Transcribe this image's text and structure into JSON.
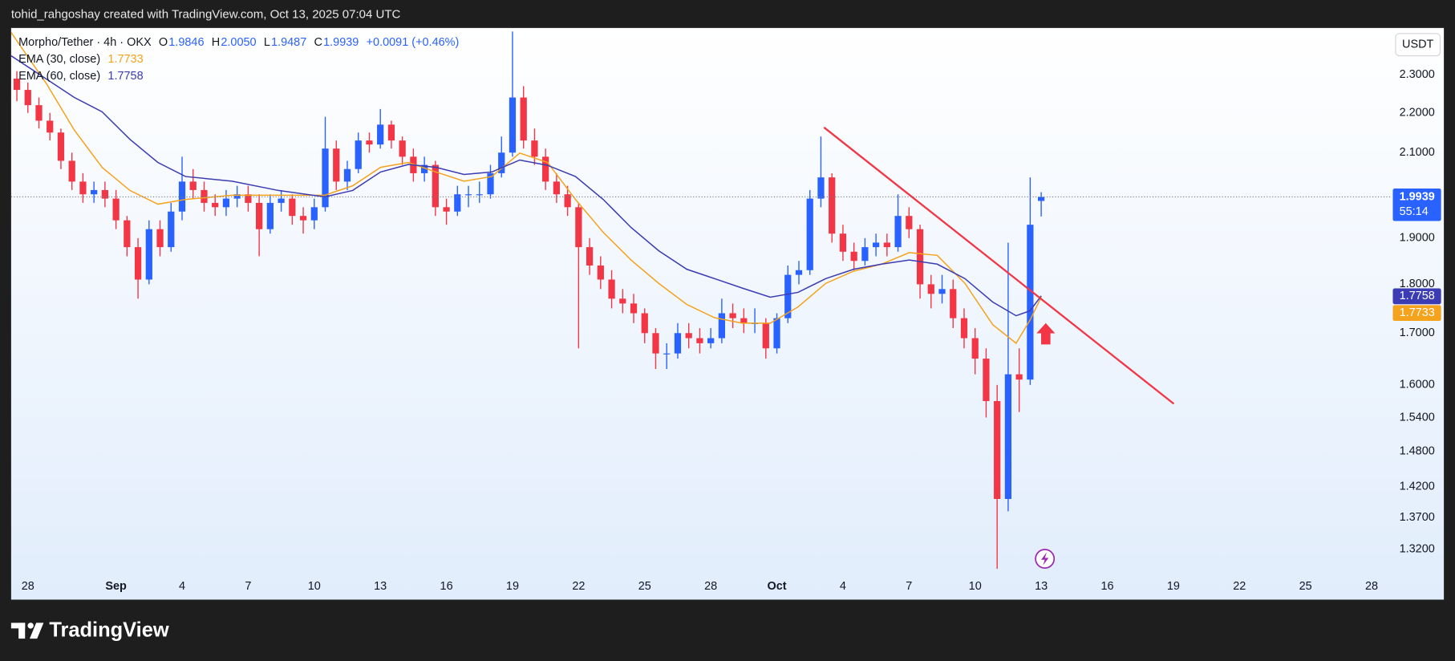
{
  "header": {
    "text": "tohid_rahgoshay created with TradingView.com, Oct 13, 2025 07:04 UTC"
  },
  "footer": {
    "brand": "TradingView"
  },
  "chart_data": {
    "type": "candlestick",
    "symbol": "Morpho/Tether · 4h · OKX",
    "ohlc_legend": [
      {
        "label": "O",
        "value": "1.9846"
      },
      {
        "label": "H",
        "value": "2.0050"
      },
      {
        "label": "L",
        "value": "1.9487"
      },
      {
        "label": "C",
        "value": "1.9939"
      }
    ],
    "change": "+0.0091 (+0.46%)",
    "currency": "USDT",
    "last_price": 1.9939,
    "countdown": "55:14",
    "up_color": "#2962ff",
    "down_color": "#f23645",
    "x": [
      -0.5,
      0,
      0.5,
      1,
      1.5,
      2,
      2.5,
      3,
      3.5,
      4,
      4.5,
      5,
      5.5,
      6,
      6.5,
      7,
      7.5,
      8,
      8.5,
      9,
      9.5,
      10,
      10.5,
      11,
      11.5,
      12,
      12.5,
      13,
      13.5,
      14,
      14.5,
      15,
      15.5,
      16,
      16.5,
      17,
      17.5,
      18,
      18.5,
      19,
      19.5,
      20,
      20.5,
      21,
      21.5,
      22,
      22.5,
      23,
      23.5,
      24,
      24.5,
      25,
      25.5,
      26,
      26.5,
      27,
      27.5,
      28,
      28.5,
      29,
      29.5,
      30,
      30.5,
      31,
      31.5,
      32,
      32.5,
      33,
      33.5,
      34,
      34.5,
      35,
      35.5,
      36,
      36.5,
      37,
      37.5,
      38,
      38.5,
      39,
      39.5,
      40,
      40.5,
      41,
      41.5,
      42,
      42.5,
      43,
      43.5,
      44,
      44.5,
      45,
      45.5,
      46
    ],
    "ohlc": [
      [
        2.29,
        2.31,
        2.23,
        2.26
      ],
      [
        2.26,
        2.28,
        2.2,
        2.22
      ],
      [
        2.22,
        2.24,
        2.16,
        2.18
      ],
      [
        2.18,
        2.2,
        2.13,
        2.15
      ],
      [
        2.15,
        2.16,
        2.06,
        2.08
      ],
      [
        2.08,
        2.1,
        2.01,
        2.03
      ],
      [
        2.03,
        2.05,
        1.98,
        2.0
      ],
      [
        2.0,
        2.03,
        1.98,
        2.01
      ],
      [
        2.01,
        2.03,
        1.97,
        1.99
      ],
      [
        1.99,
        2.01,
        1.92,
        1.94
      ],
      [
        1.94,
        1.95,
        1.86,
        1.88
      ],
      [
        1.88,
        1.9,
        1.77,
        1.81
      ],
      [
        1.81,
        1.94,
        1.8,
        1.92
      ],
      [
        1.92,
        1.94,
        1.86,
        1.88
      ],
      [
        1.88,
        1.98,
        1.87,
        1.96
      ],
      [
        1.96,
        2.09,
        1.94,
        2.03
      ],
      [
        2.03,
        2.06,
        1.99,
        2.01
      ],
      [
        2.01,
        2.03,
        1.96,
        1.98
      ],
      [
        1.98,
        2.0,
        1.95,
        1.97
      ],
      [
        1.97,
        2.01,
        1.95,
        1.99
      ],
      [
        1.99,
        2.02,
        1.97,
        2.0
      ],
      [
        2.0,
        2.02,
        1.96,
        1.98
      ],
      [
        1.98,
        2.0,
        1.86,
        1.92
      ],
      [
        1.92,
        2.0,
        1.91,
        1.98
      ],
      [
        1.98,
        2.01,
        1.96,
        1.99
      ],
      [
        1.99,
        2.0,
        1.93,
        1.95
      ],
      [
        1.95,
        1.97,
        1.91,
        1.94
      ],
      [
        1.94,
        1.99,
        1.92,
        1.97
      ],
      [
        1.97,
        2.19,
        1.96,
        2.11
      ],
      [
        2.11,
        2.13,
        2.01,
        2.03
      ],
      [
        2.03,
        2.08,
        2.01,
        2.06
      ],
      [
        2.06,
        2.15,
        2.05,
        2.13
      ],
      [
        2.13,
        2.15,
        2.1,
        2.12
      ],
      [
        2.12,
        2.21,
        2.11,
        2.17
      ],
      [
        2.17,
        2.18,
        2.11,
        2.13
      ],
      [
        2.13,
        2.14,
        2.07,
        2.09
      ],
      [
        2.09,
        2.11,
        2.03,
        2.05
      ],
      [
        2.05,
        2.09,
        2.03,
        2.07
      ],
      [
        2.07,
        2.08,
        1.95,
        1.97
      ],
      [
        1.97,
        1.99,
        1.93,
        1.96
      ],
      [
        1.96,
        2.02,
        1.95,
        2.0
      ],
      [
        2.0,
        2.02,
        1.97,
        2.0
      ],
      [
        2.0,
        2.03,
        1.98,
        2.0
      ],
      [
        2.0,
        2.07,
        1.99,
        2.05
      ],
      [
        2.05,
        2.14,
        2.04,
        2.1
      ],
      [
        2.1,
        2.42,
        2.09,
        2.24
      ],
      [
        2.24,
        2.27,
        2.11,
        2.13
      ],
      [
        2.13,
        2.16,
        2.07,
        2.09
      ],
      [
        2.09,
        2.11,
        2.01,
        2.03
      ],
      [
        2.03,
        2.05,
        1.98,
        2.0
      ],
      [
        2.0,
        2.02,
        1.95,
        1.97
      ],
      [
        1.97,
        1.98,
        1.67,
        1.88
      ],
      [
        1.88,
        1.9,
        1.82,
        1.84
      ],
      [
        1.84,
        1.86,
        1.79,
        1.81
      ],
      [
        1.81,
        1.83,
        1.75,
        1.77
      ],
      [
        1.77,
        1.79,
        1.74,
        1.76
      ],
      [
        1.76,
        1.78,
        1.72,
        1.74
      ],
      [
        1.74,
        1.75,
        1.68,
        1.7
      ],
      [
        1.7,
        1.71,
        1.63,
        1.66
      ],
      [
        1.66,
        1.68,
        1.63,
        1.66
      ],
      [
        1.66,
        1.72,
        1.65,
        1.7
      ],
      [
        1.7,
        1.72,
        1.67,
        1.69
      ],
      [
        1.69,
        1.71,
        1.66,
        1.68
      ],
      [
        1.68,
        1.71,
        1.67,
        1.69
      ],
      [
        1.69,
        1.77,
        1.68,
        1.74
      ],
      [
        1.74,
        1.76,
        1.71,
        1.73
      ],
      [
        1.73,
        1.75,
        1.7,
        1.72
      ],
      [
        1.72,
        1.75,
        1.7,
        1.72
      ],
      [
        1.72,
        1.73,
        1.65,
        1.67
      ],
      [
        1.67,
        1.74,
        1.66,
        1.73
      ],
      [
        1.73,
        1.84,
        1.72,
        1.82
      ],
      [
        1.82,
        1.85,
        1.8,
        1.83
      ],
      [
        1.83,
        2.01,
        1.82,
        1.99
      ],
      [
        1.99,
        2.14,
        1.97,
        2.04
      ],
      [
        2.04,
        2.05,
        1.89,
        1.91
      ],
      [
        1.91,
        1.93,
        1.85,
        1.87
      ],
      [
        1.87,
        1.89,
        1.83,
        1.85
      ],
      [
        1.85,
        1.9,
        1.84,
        1.88
      ],
      [
        1.88,
        1.91,
        1.86,
        1.89
      ],
      [
        1.89,
        1.91,
        1.86,
        1.88
      ],
      [
        1.88,
        2.0,
        1.87,
        1.95
      ],
      [
        1.95,
        1.97,
        1.9,
        1.92
      ],
      [
        1.92,
        1.93,
        1.77,
        1.8
      ],
      [
        1.8,
        1.82,
        1.75,
        1.78
      ],
      [
        1.78,
        1.82,
        1.76,
        1.79
      ],
      [
        1.79,
        1.81,
        1.71,
        1.73
      ],
      [
        1.73,
        1.75,
        1.67,
        1.69
      ],
      [
        1.69,
        1.71,
        1.62,
        1.65
      ],
      [
        1.65,
        1.67,
        1.54,
        1.57
      ],
      [
        1.57,
        1.6,
        1.29,
        1.4
      ],
      [
        1.4,
        1.89,
        1.38,
        1.62
      ],
      [
        1.62,
        1.67,
        1.55,
        1.61
      ],
      [
        1.61,
        2.04,
        1.6,
        1.93
      ],
      [
        1.9846,
        2.005,
        1.9487,
        1.9939
      ]
    ],
    "ema": [
      {
        "name": "EMA (30, close)",
        "value": 1.7733,
        "color": "#f5a21c",
        "x": [
          -0.76,
          0.84,
          2.11,
          3.37,
          4.63,
          5.9,
          7.16,
          9.27,
          11.37,
          13.48,
          14.74,
          16.01,
          17.27,
          18.53,
          19.8,
          21.06,
          22.33,
          23.59,
          24.86,
          26.12,
          27.38,
          28.64,
          29.91,
          31.17,
          32.43,
          33.7,
          34.96,
          36.22,
          37.49,
          38.75,
          40.01,
          41.28,
          42.54,
          43.8,
          44.86,
          45.49,
          46.0
        ],
        "values": [
          2.417,
          2.277,
          2.156,
          2.064,
          2.009,
          1.977,
          1.988,
          1.998,
          1.998,
          1.998,
          2.02,
          2.064,
          2.076,
          2.053,
          2.031,
          2.042,
          2.099,
          2.076,
          1.988,
          1.913,
          1.852,
          1.802,
          1.758,
          1.731,
          1.72,
          1.72,
          1.753,
          1.802,
          1.828,
          1.843,
          1.868,
          1.862,
          1.802,
          1.717,
          1.68,
          1.726,
          1.7733
        ]
      },
      {
        "name": "EMA (60, close)",
        "value": 1.7758,
        "color": "#3b3bb3",
        "x": [
          -0.76,
          0.84,
          2.11,
          3.37,
          4.63,
          5.9,
          7.16,
          9.27,
          11.37,
          13.48,
          14.74,
          16.01,
          17.27,
          18.53,
          19.8,
          21.06,
          22.33,
          23.59,
          24.86,
          26.12,
          27.38,
          28.64,
          29.91,
          31.17,
          32.43,
          33.7,
          34.96,
          36.22,
          37.49,
          38.75,
          40.01,
          41.28,
          42.54,
          43.8,
          44.86,
          45.49,
          46.0
        ],
        "values": [
          2.352,
          2.289,
          2.24,
          2.203,
          2.133,
          2.076,
          2.042,
          2.031,
          2.009,
          1.994,
          2.009,
          2.053,
          2.071,
          2.064,
          2.047,
          2.053,
          2.082,
          2.069,
          2.042,
          1.988,
          1.924,
          1.872,
          1.832,
          1.812,
          1.792,
          1.773,
          1.783,
          1.812,
          1.832,
          1.843,
          1.852,
          1.843,
          1.812,
          1.763,
          1.735,
          1.745,
          1.7758
        ]
      }
    ],
    "trendline": {
      "color": "#f23645",
      "x": [
        36.14,
        52.02
      ],
      "y": [
        2.163,
        1.565
      ]
    },
    "xlim": [
      -0.76,
      61.92
    ],
    "xticks": [
      {
        "value": 0,
        "label": "28"
      },
      {
        "value": 4,
        "label": "Sep"
      },
      {
        "value": 7,
        "label": "4"
      },
      {
        "value": 10,
        "label": "7"
      },
      {
        "value": 13,
        "label": "10"
      },
      {
        "value": 16,
        "label": "13"
      },
      {
        "value": 19,
        "label": "16"
      },
      {
        "value": 22,
        "label": "19"
      },
      {
        "value": 25,
        "label": "22"
      },
      {
        "value": 28,
        "label": "25"
      },
      {
        "value": 31,
        "label": "28"
      },
      {
        "value": 34,
        "label": "Oct"
      },
      {
        "value": 37,
        "label": "4"
      },
      {
        "value": 40,
        "label": "7"
      },
      {
        "value": 43,
        "label": "10"
      },
      {
        "value": 46,
        "label": "13"
      },
      {
        "value": 49,
        "label": "16"
      },
      {
        "value": 52,
        "label": "19"
      },
      {
        "value": 55,
        "label": "22"
      },
      {
        "value": 58,
        "label": "25"
      },
      {
        "value": 61,
        "label": "28"
      }
    ],
    "ylim": [
      1.28,
      2.43
    ],
    "log_y": true,
    "grid": false,
    "yticks": [
      {
        "value": 1.32,
        "label": "1.3200"
      },
      {
        "value": 1.37,
        "label": "1.3700"
      },
      {
        "value": 1.42,
        "label": "1.4200"
      },
      {
        "value": 1.48,
        "label": "1.4800"
      },
      {
        "value": 1.54,
        "label": "1.5400"
      },
      {
        "value": 1.6,
        "label": "1.6000"
      },
      {
        "value": 1.7,
        "label": "1.7000"
      },
      {
        "value": 1.8,
        "label": "1.8000"
      },
      {
        "value": 1.9,
        "label": "1.9000"
      },
      {
        "value": 2.1,
        "label": "2.1000"
      },
      {
        "value": 2.2,
        "label": "2.2000"
      },
      {
        "value": 2.3,
        "label": "2.3000"
      }
    ]
  }
}
